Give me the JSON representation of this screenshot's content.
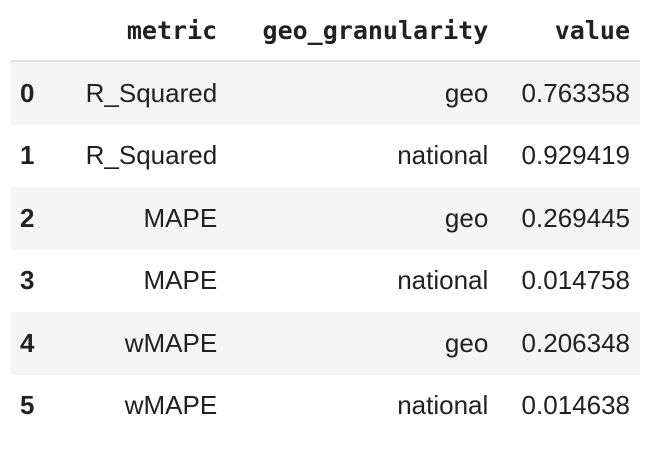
{
  "table": {
    "columns": [
      "",
      "metric",
      "geo_granularity",
      "value"
    ],
    "rows": [
      {
        "index": "0",
        "metric": "R_Squared",
        "geo_granularity": "geo",
        "value": "0.763358"
      },
      {
        "index": "1",
        "metric": "R_Squared",
        "geo_granularity": "national",
        "value": "0.929419"
      },
      {
        "index": "2",
        "metric": "MAPE",
        "geo_granularity": "geo",
        "value": "0.269445"
      },
      {
        "index": "3",
        "metric": "MAPE",
        "geo_granularity": "national",
        "value": "0.014758"
      },
      {
        "index": "4",
        "metric": "wMAPE",
        "geo_granularity": "geo",
        "value": "0.206348"
      },
      {
        "index": "5",
        "metric": "wMAPE",
        "geo_granularity": "national",
        "value": "0.014638"
      }
    ]
  },
  "colors": {
    "stripe": "#f5f5f5",
    "text": "#212121",
    "header_border": "#e0e0e0"
  }
}
